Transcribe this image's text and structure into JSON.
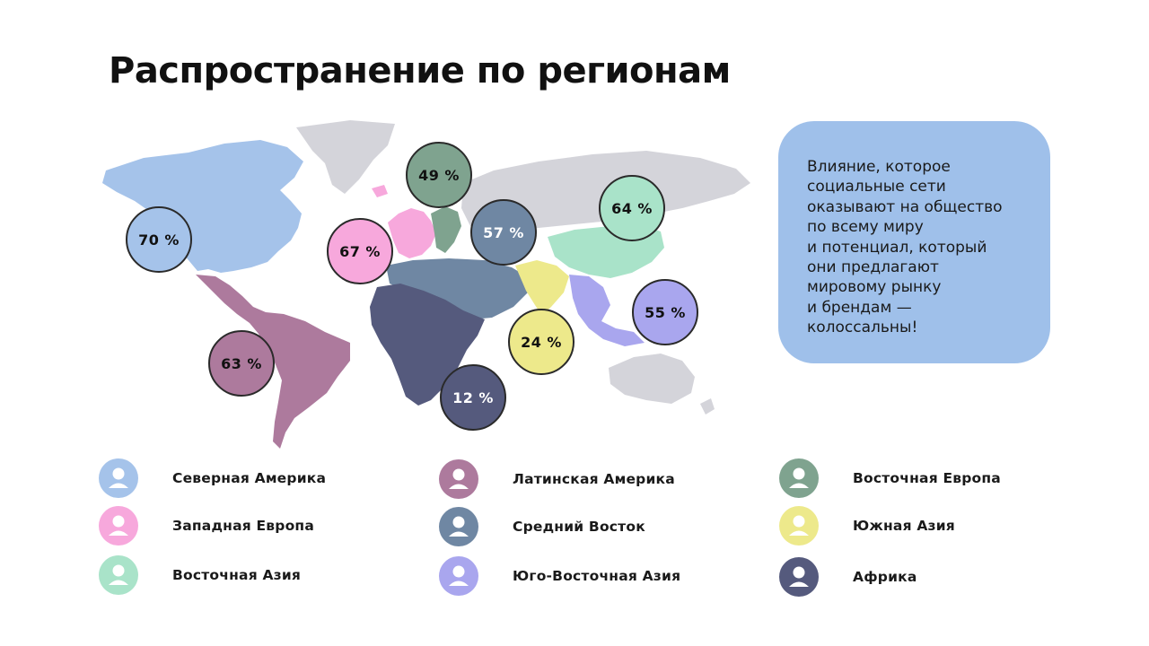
{
  "title": "Распространение по регионам",
  "info": {
    "lines": [
      "Влияние, которое",
      "социальные сети",
      "оказывают на общество",
      "по всему миру",
      "и потенциал, который",
      "они предлагают",
      "мировому рынку",
      "и брендам —",
      "колоссальны!"
    ]
  },
  "regions": [
    {
      "id": "north-america",
      "name": "Северная Америка",
      "value": "70 %",
      "color": "#a5c3ea"
    },
    {
      "id": "western-europe",
      "name": "Западная Европа",
      "value": "67 %",
      "color": "#f7a8dc"
    },
    {
      "id": "east-asia",
      "name": "Восточная Азия",
      "value": "64 %",
      "color": "#a9e3c9"
    },
    {
      "id": "latin-america",
      "name": "Латинская Америка",
      "value": "63 %",
      "color": "#ad7a9d"
    },
    {
      "id": "middle-east",
      "name": "Средний Восток",
      "value": "57 %",
      "color": "#6f87a3"
    },
    {
      "id": "southeast-asia",
      "name": "Юго-Восточная Азия",
      "value": "55 %",
      "color": "#a9a6ee"
    },
    {
      "id": "eastern-europe",
      "name": "Восточная Европа",
      "value": "49 %",
      "color": "#7fa38f"
    },
    {
      "id": "south-asia",
      "name": "Южная Азия",
      "value": "24 %",
      "color": "#ede98b"
    },
    {
      "id": "africa",
      "name": "Африка",
      "value": "12 %",
      "color": "#555a7d"
    }
  ],
  "colors": {
    "land_other": "#d4d4da",
    "info_box": "#9fc0ea",
    "text": "#111111"
  }
}
